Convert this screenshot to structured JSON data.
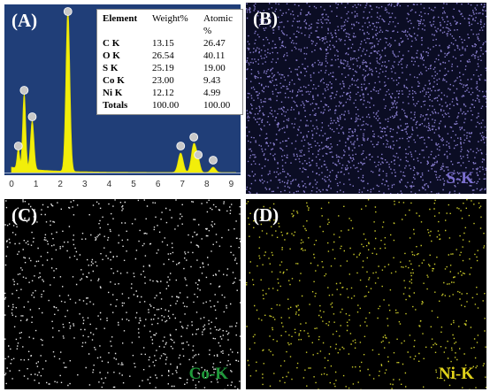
{
  "panels": [
    {
      "label": "(A)"
    },
    {
      "label": "(B)",
      "map_label": "S-K"
    },
    {
      "label": "(C)",
      "map_label": "Co-K"
    },
    {
      "label": "(D)",
      "map_label": "Ni-K"
    }
  ],
  "spectrum": {
    "xticks": [
      0,
      1,
      2,
      3,
      4,
      5,
      6,
      7,
      8,
      9
    ]
  },
  "table": {
    "header": [
      "Element",
      "Weight%",
      "Atomic %"
    ],
    "rows": [
      [
        "C K",
        "13.15",
        "26.47"
      ],
      [
        "O K",
        "26.54",
        "40.11"
      ],
      [
        "S K",
        "25.19",
        "19.00"
      ],
      [
        "Co K",
        "23.00",
        "9.43"
      ],
      [
        "Ni K",
        "12.12",
        "4.99"
      ],
      [
        "Totals",
        "100.00",
        "100.00"
      ]
    ]
  }
}
